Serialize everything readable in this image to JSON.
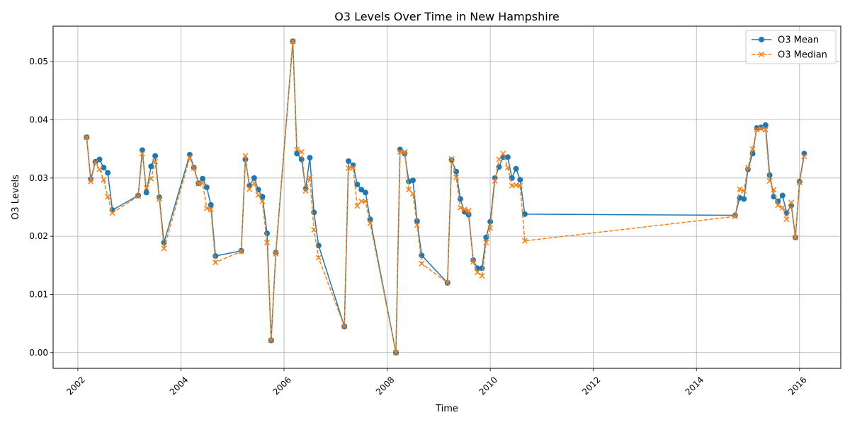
{
  "chart_data": {
    "type": "line",
    "title": "O3 Levels Over Time in New Hampshire",
    "xlabel": "Time",
    "ylabel": "O3 Levels",
    "xlim": [
      2001.52,
      2016.8
    ],
    "ylim": [
      -0.0027,
      0.0561
    ],
    "grid": true,
    "legend_position": "top-right",
    "x_ticks": [
      2002,
      2004,
      2006,
      2008,
      2010,
      2012,
      2014,
      2016
    ],
    "x_tick_labels": [
      "2002",
      "2004",
      "2006",
      "2008",
      "2010",
      "2012",
      "2014",
      "2016"
    ],
    "y_ticks": [
      0.0,
      0.01,
      0.02,
      0.03,
      0.04,
      0.05
    ],
    "y_tick_labels": [
      "0.00",
      "0.01",
      "0.02",
      "0.03",
      "0.04",
      "0.05"
    ],
    "x": [
      2002.17,
      2002.25,
      2002.34,
      2002.42,
      2002.5,
      2002.58,
      2002.67,
      2003.17,
      2003.25,
      2003.33,
      2003.42,
      2003.5,
      2003.58,
      2003.67,
      2004.17,
      2004.25,
      2004.34,
      2004.42,
      2004.5,
      2004.58,
      2004.67,
      2005.17,
      2005.25,
      2005.33,
      2005.42,
      2005.5,
      2005.58,
      2005.67,
      2005.75,
      2005.84,
      2006.17,
      2006.25,
      2006.34,
      2006.42,
      2006.5,
      2006.58,
      2006.67,
      2007.17,
      2007.25,
      2007.34,
      2007.42,
      2007.5,
      2007.58,
      2007.67,
      2008.17,
      2008.25,
      2008.34,
      2008.42,
      2008.5,
      2008.58,
      2008.67,
      2009.17,
      2009.25,
      2009.34,
      2009.42,
      2009.5,
      2009.58,
      2009.67,
      2009.75,
      2009.84,
      2009.92,
      2010.0,
      2010.09,
      2010.17,
      2010.25,
      2010.34,
      2010.42,
      2010.5,
      2010.58,
      2010.67,
      2014.75,
      2014.84,
      2014.92,
      2015.0,
      2015.09,
      2015.17,
      2015.25,
      2015.34,
      2015.42,
      2015.5,
      2015.58,
      2015.67,
      2015.75,
      2015.84,
      2015.92,
      2016.0,
      2016.09
    ],
    "series": [
      {
        "name": "O3 Mean",
        "color": "#1f77b4",
        "linestyle": "solid",
        "marker": "circle",
        "values": [
          0.037,
          0.0298,
          0.0328,
          0.0332,
          0.0318,
          0.0309,
          0.0245,
          0.027,
          0.0348,
          0.0275,
          0.032,
          0.0338,
          0.0267,
          0.0189,
          0.034,
          0.0318,
          0.0291,
          0.0299,
          0.0284,
          0.0254,
          0.0166,
          0.0175,
          0.0332,
          0.0287,
          0.03,
          0.028,
          0.0268,
          0.0205,
          0.0021,
          0.0172,
          0.0535,
          0.0342,
          0.0332,
          0.0282,
          0.0335,
          0.0241,
          0.0184,
          0.0045,
          0.0329,
          0.0322,
          0.0289,
          0.028,
          0.0275,
          0.0229,
          0.0,
          0.0349,
          0.0342,
          0.0294,
          0.0296,
          0.0226,
          0.0167,
          0.012,
          0.0331,
          0.0311,
          0.0264,
          0.0242,
          0.0237,
          0.0159,
          0.0145,
          0.0145,
          0.0198,
          0.0225,
          0.03,
          0.0319,
          0.0336,
          0.0336,
          0.03,
          0.0316,
          0.0297,
          0.0238,
          0.0236,
          0.0266,
          0.0264,
          0.0315,
          0.0342,
          0.0386,
          0.0387,
          0.0391,
          0.0305,
          0.0268,
          0.026,
          0.027,
          0.024,
          0.0253,
          0.0198,
          0.0294,
          0.0342
        ]
      },
      {
        "name": "O3 Median",
        "color": "#ff7f0e",
        "linestyle": "dashed",
        "marker": "x",
        "values": [
          0.037,
          0.0294,
          0.0327,
          0.0315,
          0.0297,
          0.0268,
          0.024,
          0.0269,
          0.0342,
          0.0283,
          0.0299,
          0.0328,
          0.0264,
          0.0179,
          0.0335,
          0.0317,
          0.029,
          0.0291,
          0.0248,
          0.0246,
          0.0155,
          0.0174,
          0.0338,
          0.0281,
          0.0291,
          0.0271,
          0.026,
          0.0189,
          0.0021,
          0.017,
          0.0535,
          0.0349,
          0.0345,
          0.0278,
          0.0301,
          0.0211,
          0.0163,
          0.0045,
          0.0317,
          0.0318,
          0.0252,
          0.026,
          0.026,
          0.0222,
          0.0,
          0.0345,
          0.0345,
          0.028,
          0.0273,
          0.0219,
          0.0153,
          0.012,
          0.0333,
          0.0301,
          0.0249,
          0.0246,
          0.0244,
          0.0156,
          0.0138,
          0.0132,
          0.0189,
          0.0214,
          0.0295,
          0.0332,
          0.0342,
          0.0318,
          0.0287,
          0.0288,
          0.0287,
          0.0192,
          0.0234,
          0.0281,
          0.0278,
          0.0318,
          0.035,
          0.0383,
          0.0385,
          0.0383,
          0.0295,
          0.028,
          0.0253,
          0.0249,
          0.0229,
          0.0258,
          0.0198,
          0.0292,
          0.0337
        ]
      }
    ]
  }
}
